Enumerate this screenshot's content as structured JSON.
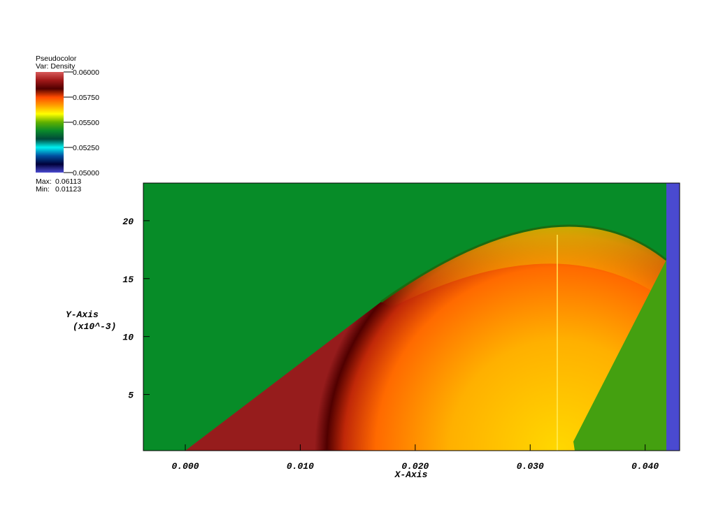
{
  "chart_data": {
    "type": "pseudocolor",
    "legend_title": "Pseudocolor",
    "variable": "Var: Density",
    "colorbar_ticks": [
      {
        "value": 0.06,
        "label": "0.06000"
      },
      {
        "value": 0.0575,
        "label": "0.05750"
      },
      {
        "value": 0.055,
        "label": "0.05500"
      },
      {
        "value": 0.0525,
        "label": "0.05250"
      },
      {
        "value": 0.05,
        "label": "0.05000"
      }
    ],
    "colorbar_lim": [
      0.05,
      0.06
    ],
    "colormap": [
      "#d85a5a",
      "#a01818",
      "#500000",
      "#ff4a00",
      "#ffa000",
      "#ffff00",
      "#5fb000",
      "#0a8a2a",
      "#004a3a",
      "#00f0f0",
      "#0050a0",
      "#00003a",
      "#4a4ad0"
    ],
    "max_label": "Max:",
    "max": 0.06113,
    "min_label": "Min:",
    "min": 0.01123,
    "x_label": "X-Axis",
    "y_label": "Y-Axis",
    "y_label_unit": "(x10^-3)",
    "xlim": [
      -0.00365,
      0.043
    ],
    "xticks": [
      {
        "value": 0.0,
        "label": "0.000"
      },
      {
        "value": 0.01,
        "label": "0.010"
      },
      {
        "value": 0.02,
        "label": "0.020"
      },
      {
        "value": 0.03,
        "label": "0.030"
      },
      {
        "value": 0.04,
        "label": "0.040"
      }
    ],
    "ylim": [
      0.15,
      23.25
    ],
    "yticks": [
      5,
      10,
      15,
      20
    ]
  }
}
